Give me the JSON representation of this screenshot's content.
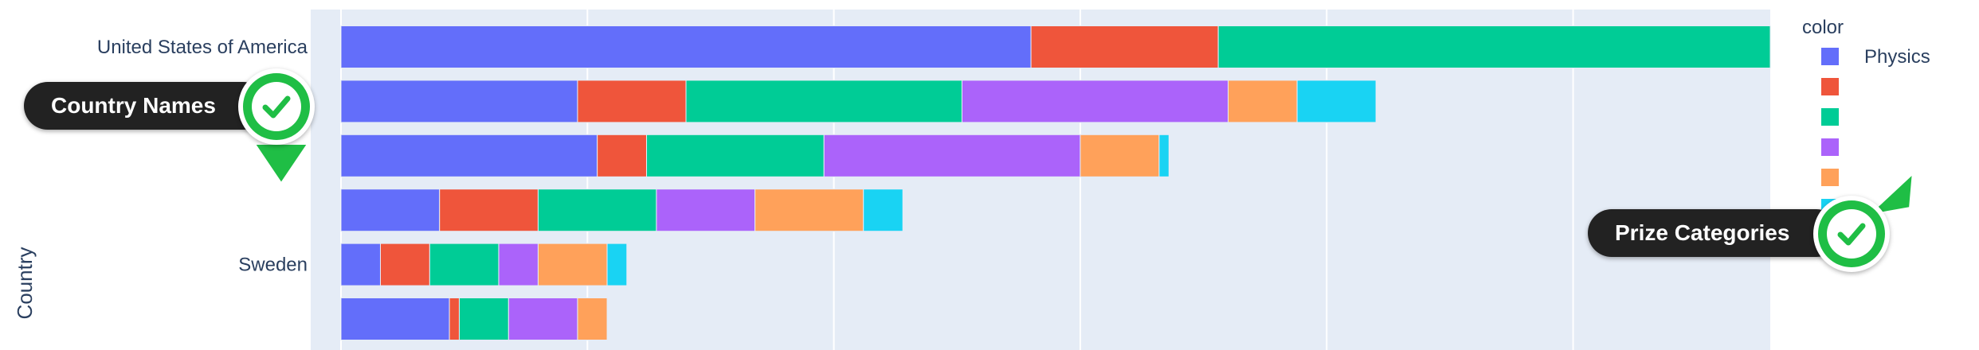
{
  "chart_data": {
    "type": "bar",
    "orientation": "horizontal",
    "barmode": "stack",
    "ylabel": "Country",
    "xlabel": "",
    "categories": [
      "United States of America",
      "",
      "",
      "",
      "Sweden",
      ""
    ],
    "xlim": [
      0,
      290
    ],
    "grid": true,
    "legend": {
      "title": "color",
      "placement": "right"
    },
    "series": [
      {
        "name": "Physics",
        "color": "#636efa",
        "values": [
          140,
          48,
          52,
          20,
          8,
          22
        ]
      },
      {
        "name": "",
        "color": "#EF553B",
        "values": [
          38,
          22,
          10,
          20,
          10,
          2
        ]
      },
      {
        "name": "",
        "color": "#00cc96",
        "values": [
          112,
          56,
          36,
          24,
          14,
          10
        ]
      },
      {
        "name": "",
        "color": "#ab63fa",
        "values": [
          0,
          54,
          52,
          20,
          8,
          14
        ]
      },
      {
        "name": "",
        "color": "#FFA15A",
        "values": [
          0,
          14,
          16,
          22,
          14,
          6
        ]
      },
      {
        "name": "",
        "color": "#19d3f3",
        "values": [
          0,
          16,
          2,
          8,
          4,
          0
        ]
      }
    ]
  },
  "callouts": {
    "country_names": "Country Names",
    "prize_categories": "Prize Categories"
  },
  "colors": {
    "plot_bg": "#e5ecf6",
    "grid": "#ffffff",
    "callout_bg": "#222222",
    "badge": "#1fbe45"
  }
}
